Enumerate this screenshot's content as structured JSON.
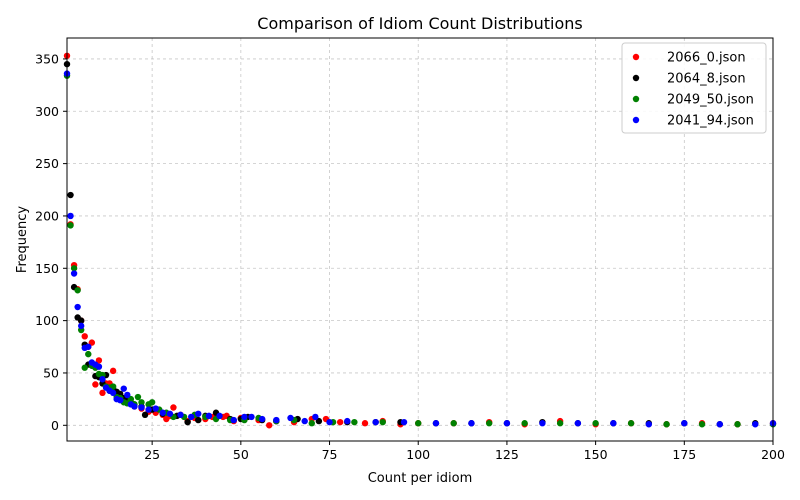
{
  "chart_data": {
    "type": "scatter",
    "title": "Comparison of Idiom Count Distributions",
    "xlabel": "Count per idiom",
    "ylabel": "Frequency",
    "xlim": [
      1,
      200
    ],
    "ylim": [
      -15,
      370
    ],
    "xticks": [
      25,
      50,
      75,
      100,
      125,
      150,
      175,
      200
    ],
    "yticks": [
      0,
      50,
      100,
      150,
      200,
      250,
      300,
      350
    ],
    "grid": true,
    "legend_position": "top-right",
    "series": [
      {
        "name": "2066_0.json",
        "color": "#ff0000",
        "points": [
          [
            1,
            353
          ],
          [
            2,
            192
          ],
          [
            3,
            153
          ],
          [
            4,
            130
          ],
          [
            5,
            100
          ],
          [
            6,
            85
          ],
          [
            7,
            75
          ],
          [
            8,
            79
          ],
          [
            9,
            39
          ],
          [
            10,
            62
          ],
          [
            11,
            31
          ],
          [
            12,
            40
          ],
          [
            13,
            40
          ],
          [
            14,
            52
          ],
          [
            15,
            30
          ],
          [
            16,
            28
          ],
          [
            17,
            24
          ],
          [
            18,
            22
          ],
          [
            19,
            22
          ],
          [
            20,
            18
          ],
          [
            22,
            16
          ],
          [
            24,
            13
          ],
          [
            26,
            12
          ],
          [
            28,
            10
          ],
          [
            29,
            6
          ],
          [
            30,
            9
          ],
          [
            31,
            17
          ],
          [
            33,
            10
          ],
          [
            35,
            4
          ],
          [
            37,
            7
          ],
          [
            40,
            6
          ],
          [
            42,
            8
          ],
          [
            45,
            8
          ],
          [
            46,
            9
          ],
          [
            48,
            4
          ],
          [
            50,
            7
          ],
          [
            55,
            5
          ],
          [
            58,
            0
          ],
          [
            60,
            4
          ],
          [
            65,
            3
          ],
          [
            70,
            6
          ],
          [
            74,
            6
          ],
          [
            78,
            3
          ],
          [
            85,
            2
          ],
          [
            90,
            4
          ],
          [
            95,
            1
          ],
          [
            100,
            2
          ],
          [
            110,
            2
          ],
          [
            120,
            3
          ],
          [
            130,
            1
          ],
          [
            140,
            4
          ],
          [
            150,
            1
          ],
          [
            160,
            2
          ],
          [
            170,
            1
          ],
          [
            180,
            2
          ],
          [
            190,
            1
          ],
          [
            200,
            2
          ]
        ]
      },
      {
        "name": "2064_8.json",
        "color": "#000000",
        "points": [
          [
            1,
            345
          ],
          [
            2,
            220
          ],
          [
            3,
            132
          ],
          [
            4,
            103
          ],
          [
            5,
            100
          ],
          [
            6,
            77
          ],
          [
            7,
            58
          ],
          [
            8,
            57
          ],
          [
            9,
            47
          ],
          [
            10,
            46
          ],
          [
            11,
            40
          ],
          [
            12,
            48
          ],
          [
            13,
            33
          ],
          [
            14,
            35
          ],
          [
            15,
            32
          ],
          [
            16,
            30
          ],
          [
            17,
            26
          ],
          [
            18,
            24
          ],
          [
            19,
            21
          ],
          [
            20,
            20
          ],
          [
            22,
            18
          ],
          [
            23,
            10
          ],
          [
            25,
            15
          ],
          [
            28,
            11
          ],
          [
            32,
            9
          ],
          [
            35,
            3
          ],
          [
            38,
            5
          ],
          [
            40,
            9
          ],
          [
            43,
            12
          ],
          [
            47,
            6
          ],
          [
            50,
            6
          ],
          [
            52,
            8
          ],
          [
            56,
            5
          ],
          [
            60,
            4
          ],
          [
            66,
            6
          ],
          [
            72,
            4
          ],
          [
            80,
            3
          ],
          [
            88,
            3
          ],
          [
            95,
            3
          ],
          [
            105,
            2
          ],
          [
            115,
            2
          ],
          [
            125,
            2
          ],
          [
            135,
            3
          ],
          [
            145,
            2
          ],
          [
            155,
            2
          ],
          [
            165,
            2
          ],
          [
            175,
            2
          ],
          [
            185,
            1
          ],
          [
            195,
            2
          ]
        ]
      },
      {
        "name": "2049_50.json",
        "color": "#008000",
        "points": [
          [
            1,
            334
          ],
          [
            2,
            191
          ],
          [
            3,
            150
          ],
          [
            4,
            129
          ],
          [
            5,
            91
          ],
          [
            6,
            55
          ],
          [
            7,
            68
          ],
          [
            8,
            57
          ],
          [
            9,
            55
          ],
          [
            10,
            49
          ],
          [
            11,
            48
          ],
          [
            12,
            37
          ],
          [
            13,
            36
          ],
          [
            14,
            37
          ],
          [
            15,
            27
          ],
          [
            16,
            26
          ],
          [
            17,
            22
          ],
          [
            18,
            21
          ],
          [
            19,
            25
          ],
          [
            20,
            20
          ],
          [
            21,
            27
          ],
          [
            22,
            22
          ],
          [
            24,
            20
          ],
          [
            25,
            22
          ],
          [
            27,
            15
          ],
          [
            29,
            12
          ],
          [
            31,
            8
          ],
          [
            34,
            8
          ],
          [
            37,
            10
          ],
          [
            40,
            8
          ],
          [
            43,
            6
          ],
          [
            47,
            5
          ],
          [
            51,
            5
          ],
          [
            55,
            7
          ],
          [
            60,
            4
          ],
          [
            65,
            5
          ],
          [
            70,
            2
          ],
          [
            76,
            3
          ],
          [
            82,
            3
          ],
          [
            90,
            3
          ],
          [
            100,
            2
          ],
          [
            110,
            2
          ],
          [
            120,
            2
          ],
          [
            130,
            2
          ],
          [
            140,
            2
          ],
          [
            150,
            2
          ],
          [
            160,
            2
          ],
          [
            170,
            1
          ],
          [
            180,
            1
          ],
          [
            190,
            1
          ],
          [
            200,
            1
          ]
        ]
      },
      {
        "name": "2041_94.json",
        "color": "#0000ff",
        "points": [
          [
            1,
            336
          ],
          [
            2,
            200
          ],
          [
            3,
            145
          ],
          [
            4,
            113
          ],
          [
            5,
            95
          ],
          [
            6,
            74
          ],
          [
            7,
            75
          ],
          [
            8,
            60
          ],
          [
            9,
            58
          ],
          [
            10,
            56
          ],
          [
            11,
            44
          ],
          [
            12,
            36
          ],
          [
            13,
            33
          ],
          [
            14,
            31
          ],
          [
            15,
            25
          ],
          [
            16,
            24
          ],
          [
            17,
            35
          ],
          [
            18,
            29
          ],
          [
            19,
            20
          ],
          [
            20,
            18
          ],
          [
            22,
            17
          ],
          [
            24,
            15
          ],
          [
            26,
            16
          ],
          [
            28,
            12
          ],
          [
            30,
            11
          ],
          [
            33,
            10
          ],
          [
            36,
            8
          ],
          [
            38,
            11
          ],
          [
            41,
            9
          ],
          [
            44,
            9
          ],
          [
            48,
            5
          ],
          [
            51,
            8
          ],
          [
            53,
            8
          ],
          [
            56,
            6
          ],
          [
            60,
            5
          ],
          [
            64,
            7
          ],
          [
            68,
            4
          ],
          [
            71,
            8
          ],
          [
            75,
            3
          ],
          [
            80,
            4
          ],
          [
            88,
            3
          ],
          [
            96,
            3
          ],
          [
            105,
            2
          ],
          [
            115,
            2
          ],
          [
            125,
            2
          ],
          [
            135,
            2
          ],
          [
            145,
            2
          ],
          [
            155,
            2
          ],
          [
            165,
            1
          ],
          [
            175,
            2
          ],
          [
            185,
            1
          ],
          [
            195,
            1
          ],
          [
            200,
            2
          ]
        ]
      }
    ]
  }
}
